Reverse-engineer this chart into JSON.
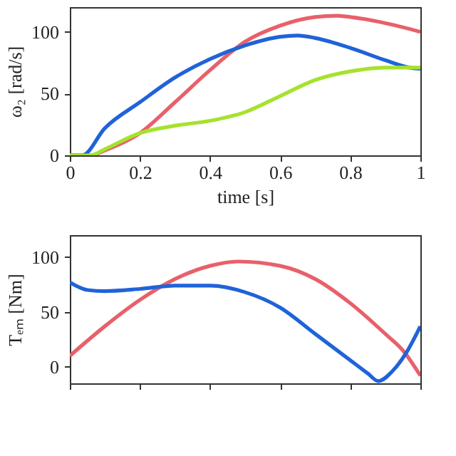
{
  "chart_data": [
    {
      "type": "line",
      "xlabel": "time [s]",
      "ylabel": "ω₂ [rad/s]",
      "xlim": [
        0,
        1
      ],
      "ylim": [
        0,
        120
      ],
      "xticks": [
        0,
        0.2,
        0.4,
        0.6,
        0.8,
        1
      ],
      "yticks": [
        0,
        50,
        100
      ],
      "grid": false,
      "series": [
        {
          "color": "#e8606a",
          "x": [
            0,
            0.06,
            0.1,
            0.2,
            0.3,
            0.4,
            0.5,
            0.6,
            0.7,
            0.76,
            0.8,
            0.9,
            1
          ],
          "values": [
            0,
            0,
            4,
            18,
            43,
            69,
            92,
            105,
            112,
            113,
            112,
            107,
            100
          ]
        },
        {
          "color": "#1f63d8",
          "x": [
            0,
            0.035,
            0.1,
            0.2,
            0.3,
            0.4,
            0.5,
            0.6,
            0.65,
            0.7,
            0.8,
            0.9,
            0.97,
            1
          ],
          "values": [
            0,
            0,
            22,
            43,
            63,
            78,
            89,
            96,
            97,
            95,
            87,
            77,
            71,
            70
          ]
        },
        {
          "color": "#a6e22e",
          "x": [
            0,
            0.06,
            0.1,
            0.2,
            0.3,
            0.4,
            0.5,
            0.6,
            0.7,
            0.8,
            0.9,
            1
          ],
          "values": [
            0,
            0,
            5,
            18,
            24,
            28,
            35,
            48,
            61,
            68,
            71,
            71
          ]
        }
      ]
    },
    {
      "type": "line",
      "ylabel": "Tₑₘ [Nm]",
      "xlim": [
        0,
        1
      ],
      "ylim": [
        -15,
        120
      ],
      "xticks": [
        0,
        0.2,
        0.4,
        0.6,
        0.8,
        1
      ],
      "yticks": [
        0,
        50,
        100
      ],
      "tick_labels": "y",
      "grid": false,
      "series": [
        {
          "color": "#e8606a",
          "x": [
            0,
            0.1,
            0.2,
            0.3,
            0.4,
            0.48,
            0.6,
            0.7,
            0.8,
            0.9,
            0.95,
            1
          ],
          "values": [
            10,
            37,
            61,
            80,
            92,
            96,
            92,
            80,
            58,
            30,
            15,
            -8
          ]
        },
        {
          "color": "#1f63d8",
          "x": [
            0,
            0.05,
            0.1,
            0.2,
            0.3,
            0.4,
            0.5,
            0.6,
            0.7,
            0.8,
            0.85,
            0.88,
            0.92,
            0.96,
            1
          ],
          "values": [
            77,
            70,
            69,
            71,
            74,
            74,
            68,
            54,
            30,
            6,
            -6,
            -13,
            -4,
            13,
            37
          ]
        }
      ]
    }
  ]
}
